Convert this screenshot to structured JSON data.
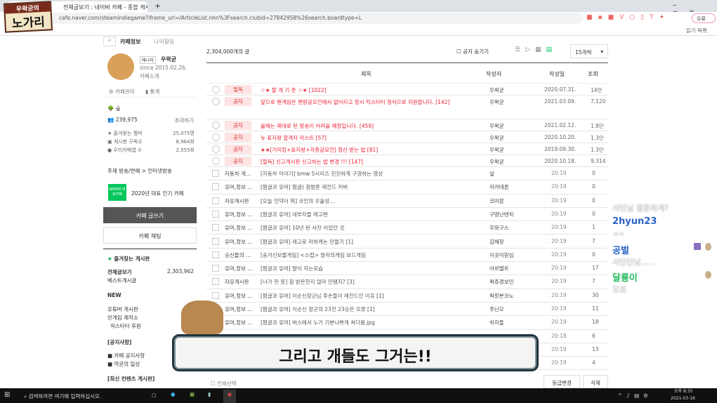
{
  "browser": {
    "tab_title": "전체글보기 : 네이버 카페 - 종합 게시판",
    "url": "cafe.naver.com/steamindiegame?iframe_url=/ArticleList.nhn%3Fsearch.clubid=27842958%26search.boardtype=L",
    "profile_label": "오류",
    "reading_list": "읽기 목록"
  },
  "overlay": {
    "logo_top": "우왁굳의",
    "logo_main": "노가리",
    "subtitle": "그리고 개들도 그거는!!"
  },
  "cafe_tabs": [
    "카페정보",
    "나의활동"
  ],
  "sidebar": {
    "manager_badge": "매니저",
    "manager_name": "우왁굳",
    "since": "since 2015.02.26.",
    "cafe_story": "카페소개",
    "manage": "카페관리",
    "stats": "통계",
    "level": "숲",
    "members": "239,975",
    "invite": "초대하기",
    "stats_rows": [
      {
        "label": "즐겨찾는 멤버",
        "value": "25,075명"
      },
      {
        "label": "게시판 구독수",
        "value": "8,964회"
      },
      {
        "label": "우리카페앱 수",
        "value": "2,555회"
      }
    ],
    "topic": "주제  방송/연예 > 인터넷방송",
    "award_badge": "NAVER 대표카페",
    "award": "2020년 대표 인기 카페",
    "write_button": "카페 글쓰기",
    "chat_button": "카페 채팅",
    "fav_boards": "즐겨찾는 게시판",
    "all_posts": "전체글보기",
    "all_posts_count": "2,303,962",
    "best": "베스트게시글",
    "new_header": "NEW",
    "new_boards": [
      "유튜버 게시판",
      "민게임 제작소",
      "픽스타터 후원"
    ],
    "notice_header": "[공지사항]",
    "notice_boards": [
      "■ 카페 공지사항",
      "■ 악굳의 일상"
    ],
    "recent_header": "[최신 컨텐츠 게시판]"
  },
  "list": {
    "total": "2,304,000개의 글",
    "hide_notice": "공지 숨기기",
    "page_size": "15개씩",
    "headers": {
      "title": "제목",
      "author": "작성자",
      "date": "작성일",
      "views": "조회"
    },
    "notices": [
      {
        "tag": "필독",
        "title": "☆★ 할 게 기 준 ☆★ [1022]",
        "author": "우왁굳",
        "date": "2020.07.31.",
        "views": "14만"
      },
      {
        "tag": "공지",
        "title": "앞으로 펜게임은 펜방공모전에서 없어지고 항시 킥스타터 형식으로 지원합니다. [142]",
        "author": "우왁굳",
        "date": "2021.03.09.",
        "views": "7,120"
      },
      {
        "tag": "공지",
        "title": "올해는 제대로 된 방송이 어려울 예정입니다. [459]",
        "author": "우왁굳",
        "date": "2021.02.12.",
        "views": "1.8만"
      },
      {
        "tag": "공지",
        "title": "뉴 표지왕 합격자 리스트 [57]",
        "author": "우왁굳",
        "date": "2020.10.20.",
        "views": "1.3만"
      },
      {
        "tag": "공지",
        "title": "★★[거리킹+표지왕+각종공모전] 정산 받는 법 [81]",
        "author": "우왁굳",
        "date": "2019.09.30.",
        "views": "1.3만"
      },
      {
        "tag": "공지",
        "title": "[필독] 신고게시판 신고하는 법 변경 !!! [147]",
        "author": "우왁굳",
        "date": "2020.10.18.",
        "views": "9,314"
      }
    ],
    "posts": [
      {
        "board": "자동차 게…",
        "title": "[자동차 이야기] bmw 5시리즈 진진하게 구경하는 영상",
        "author": "널",
        "date": "20:19",
        "views": "0"
      },
      {
        "board": "유머,정보 …",
        "title": "[펌글과 유머] 펌글) 짐범준 레전드 커버",
        "author": "라카데론",
        "date": "20:19",
        "views": "0"
      },
      {
        "board": "자유게시판",
        "title": "[오늘 인덕더 뭐] 코인의 우울성…",
        "author": "코미장",
        "date": "20:19",
        "views": "0"
      },
      {
        "board": "유머,정보 …",
        "title": "[펌글과 유머] 네부자들 레고편",
        "author": "구멍난텐치",
        "date": "20:19",
        "views": "0"
      },
      {
        "board": "유머,정보 …",
        "title": "[펌글과 유머] 10년 된 사진 이었던 것",
        "author": "우와구스",
        "date": "20:19",
        "views": "1"
      },
      {
        "board": "유머,정보 …",
        "title": "[펌글과 유머] 레고로 마히케논 만들기 [1]",
        "author": "김해창",
        "date": "20:19",
        "views": "7"
      },
      {
        "board": "승신들의 …",
        "title": "[숭거신보물게임] <스컵> 알라의게임 보드게임",
        "author": "이곳이믿심",
        "date": "20:19",
        "views": "0"
      },
      {
        "board": "유머,정보 …",
        "title": "[펌글과 유머] 말이 자는모습",
        "author": "아르벨트",
        "date": "20:19",
        "views": "17"
      },
      {
        "board": "자유게시판",
        "title": "[너가 한 뜻] 힘 받은한지 얼마 안됐지? [3]",
        "author": "왁쥬경보인",
        "date": "20:19",
        "views": "7"
      },
      {
        "board": "유머,정보 …",
        "title": "[펌글과 유머] 이순신장군님 후손들이 레전드인 이유 [1]",
        "author": "왁창본코노",
        "date": "20:19",
        "views": "30"
      },
      {
        "board": "유머,정보 …",
        "title": "[펌글과 유머] 이순신 장군의 23전 23승은 오류 [1]",
        "author": "주닌오",
        "date": "20:19",
        "views": "11"
      },
      {
        "board": "유머,정보 …",
        "title": "[펌글과 유머] 버스에서 누가 기분나쁘게 쳐다봄.jpg",
        "author": "쉬자들",
        "date": "20:19",
        "views": "18"
      },
      {
        "board": "",
        "title": "",
        "author": "",
        "date": "20:18",
        "views": "6"
      },
      {
        "board": "",
        "title": "",
        "author": "",
        "date": "20:19",
        "views": "13"
      },
      {
        "board": "",
        "title": "",
        "author": "",
        "date": "20:19",
        "views": "4"
      }
    ],
    "select_all": "전체선택",
    "grade_button": "등급변경",
    "delete_button": "삭제"
  },
  "chat": [
    {
      "msg": "사단님 결혼하게?"
    },
    {
      "user": "2hyun23",
      "color": "#2a62c8",
      "msg": "ㅋㅋ"
    },
    {
      "user": "공벌",
      "color": "#2a62c8",
      "msg": "사단단님......"
    },
    {
      "user": "달룡이",
      "color": "#1fb85a",
      "msg": "오호"
    }
  ],
  "taskbar": {
    "search_placeholder": "검색하려면 여기에 입력하십시오.",
    "time": "오후 8:35",
    "date": "2021-03-16"
  },
  "colors": {
    "notice_red": "#e23b3b",
    "naver_green": "#03c75a",
    "write_button_bg": "#555555"
  }
}
